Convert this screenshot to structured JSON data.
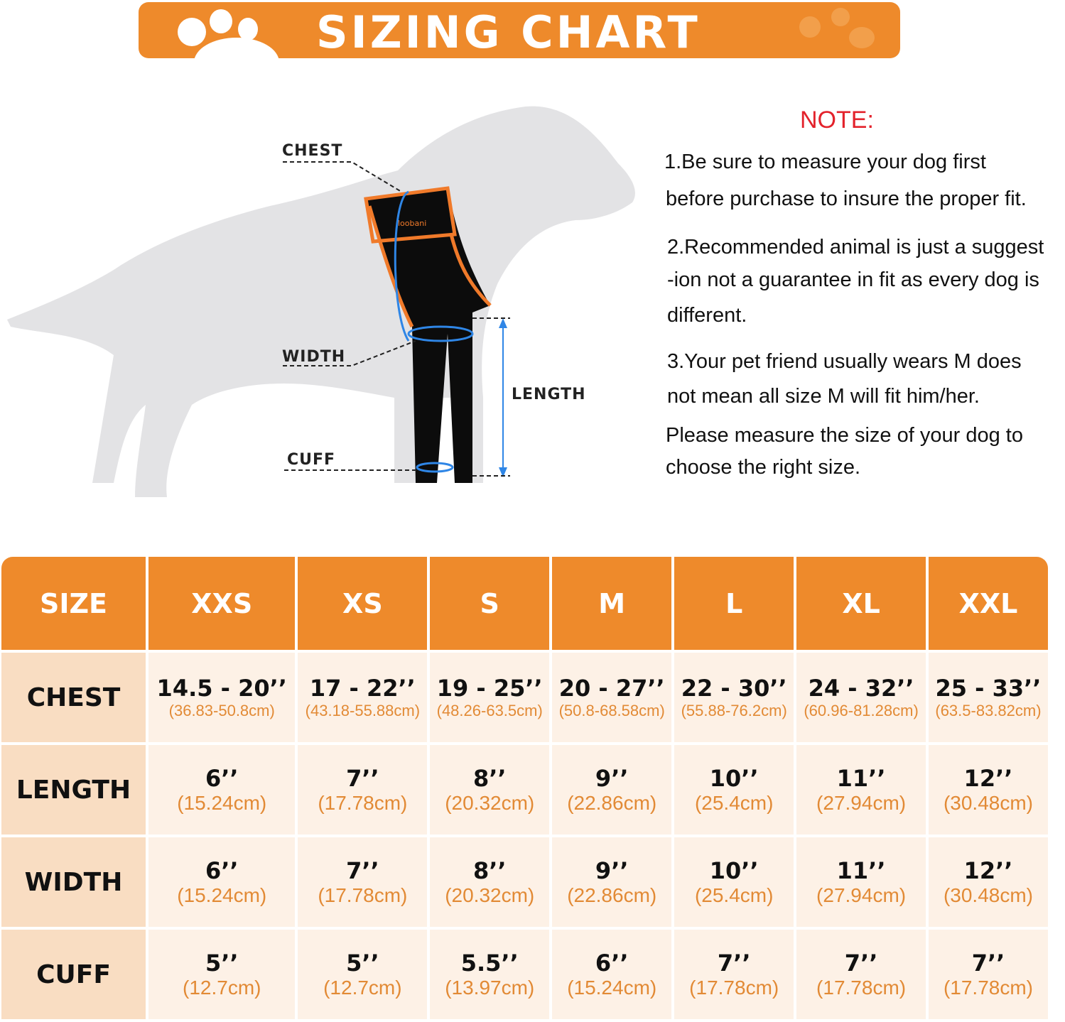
{
  "banner": {
    "title": "SIZING CHART"
  },
  "colors": {
    "accent": "#ee8a2b",
    "note": "#e3222b",
    "measure": "#2f86e6"
  },
  "diagram": {
    "labels": {
      "chest": "CHEST",
      "width": "WIDTH",
      "length": "LENGTH",
      "cuff": "CUFF"
    },
    "logo": "loobani"
  },
  "note": {
    "title": "NOTE:",
    "lines": [
      "1.Be sure to measure your dog first",
      "before purchase  to insure the proper fit.",
      "2.Recommended animal is just a suggest",
      "-ion not a guarantee in fit as every dog is",
      "different.",
      "3.Your pet friend usually wears M does",
      " not mean all size M will fit him/her.",
      "Please measure the size of your dog to",
      "choose the right size."
    ]
  },
  "table": {
    "header": [
      "SIZE",
      "XXS",
      "XS",
      "S",
      "M",
      "L",
      "XL",
      "XXL"
    ],
    "rows": [
      {
        "label": "CHEST",
        "cells": [
          {
            "in": "14.5 - 20’’",
            "cm": "(36.83-50.8cm)"
          },
          {
            "in": "17 - 22’’",
            "cm": "(43.18-55.88cm)"
          },
          {
            "in": "19 - 25’’",
            "cm": "(48.26-63.5cm)"
          },
          {
            "in": "20 - 27’’",
            "cm": "(50.8-68.58cm)"
          },
          {
            "in": "22 - 30’’",
            "cm": "(55.88-76.2cm)"
          },
          {
            "in": "24 - 32’’",
            "cm": "(60.96-81.28cm)"
          },
          {
            "in": "25 - 33’’",
            "cm": "(63.5-83.82cm)"
          }
        ]
      },
      {
        "label": "LENGTH",
        "cells": [
          {
            "in": "6’’",
            "cm": "(15.24cm)"
          },
          {
            "in": "7’’",
            "cm": "(17.78cm)"
          },
          {
            "in": "8’’",
            "cm": "(20.32cm)"
          },
          {
            "in": "9’’",
            "cm": "(22.86cm)"
          },
          {
            "in": "10’’",
            "cm": "(25.4cm)"
          },
          {
            "in": "11’’",
            "cm": "(27.94cm)"
          },
          {
            "in": "12’’",
            "cm": "(30.48cm)"
          }
        ]
      },
      {
        "label": "WIDTH",
        "cells": [
          {
            "in": "6’’",
            "cm": "(15.24cm)"
          },
          {
            "in": "7’’",
            "cm": "(17.78cm)"
          },
          {
            "in": "8’’",
            "cm": "(20.32cm)"
          },
          {
            "in": "9’’",
            "cm": "(22.86cm)"
          },
          {
            "in": "10’’",
            "cm": "(25.4cm)"
          },
          {
            "in": "11’’",
            "cm": "(27.94cm)"
          },
          {
            "in": "12’’",
            "cm": "(30.48cm)"
          }
        ]
      },
      {
        "label": "CUFF",
        "cells": [
          {
            "in": "5’’",
            "cm": "(12.7cm)"
          },
          {
            "in": "5’’",
            "cm": "(12.7cm)"
          },
          {
            "in": "5.5’’",
            "cm": "(13.97cm)"
          },
          {
            "in": "6’’",
            "cm": "(15.24cm)"
          },
          {
            "in": "7’’",
            "cm": "(17.78cm)"
          },
          {
            "in": "7’’",
            "cm": "(17.78cm)"
          },
          {
            "in": "7’’",
            "cm": "(17.78cm)"
          }
        ]
      }
    ]
  }
}
